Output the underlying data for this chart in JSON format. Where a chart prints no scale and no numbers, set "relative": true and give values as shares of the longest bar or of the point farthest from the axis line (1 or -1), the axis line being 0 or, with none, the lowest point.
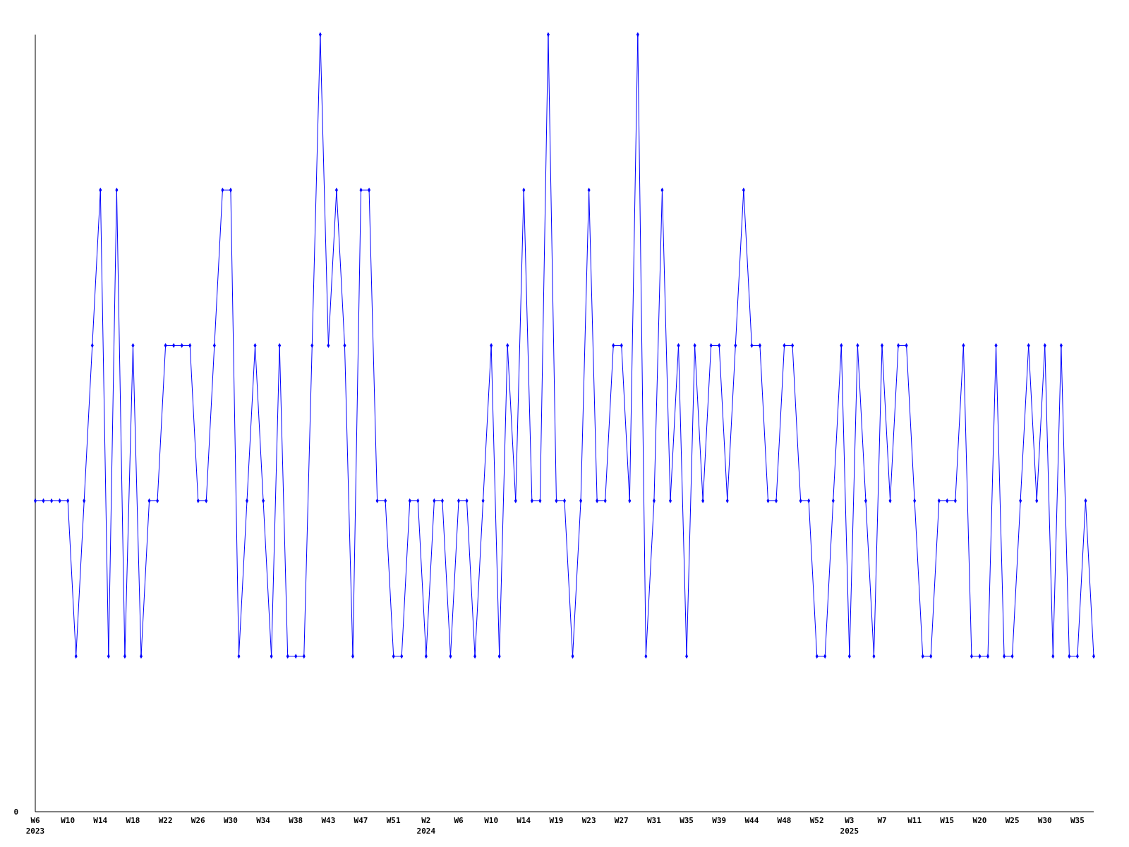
{
  "chart_data": {
    "type": "line",
    "relative": true,
    "color": "#0000ff",
    "marker": "diamond",
    "categories": [
      "W6\n2023",
      null,
      null,
      null,
      "W10",
      null,
      null,
      null,
      "W14",
      null,
      null,
      null,
      "W18",
      null,
      null,
      null,
      "W22",
      null,
      null,
      null,
      "W26",
      null,
      null,
      null,
      "W30",
      null,
      null,
      null,
      "W34",
      null,
      null,
      null,
      "W38",
      null,
      null,
      null,
      "W43",
      null,
      null,
      null,
      "W47",
      null,
      null,
      null,
      "W51",
      null,
      null,
      null,
      "W2\n2024",
      null,
      null,
      null,
      "W6",
      null,
      null,
      null,
      "W10",
      null,
      null,
      null,
      "W14",
      null,
      null,
      null,
      "W19",
      null,
      null,
      null,
      "W23",
      null,
      null,
      null,
      "W27",
      null,
      null,
      null,
      "W31",
      null,
      null,
      null,
      "W35",
      null,
      null,
      null,
      "W39",
      null,
      null,
      null,
      "W44",
      null,
      null,
      null,
      "W48",
      null,
      null,
      null,
      "W52",
      null,
      null,
      null,
      "W3\n2025",
      null,
      null,
      null,
      "W7",
      null,
      null,
      null,
      "W11",
      null,
      null,
      null,
      "W15",
      null,
      null,
      null,
      "W20",
      null,
      null,
      null,
      "W25",
      null,
      null,
      null,
      "W30",
      null,
      null,
      null,
      "W35",
      null,
      null
    ],
    "values": [
      0.4,
      0.4,
      0.4,
      0.4,
      0.4,
      0.2,
      0.4,
      0.6,
      0.8,
      0.2,
      0.8,
      0.2,
      0.6,
      0.2,
      0.4,
      0.4,
      0.6,
      0.6,
      0.6,
      0.6,
      0.4,
      0.4,
      0.6,
      0.8,
      0.8,
      0.2,
      0.4,
      0.6,
      0.4,
      0.2,
      0.6,
      0.2,
      0.2,
      0.2,
      0.6,
      1,
      0.6,
      0.8,
      0.6,
      0.2,
      0.8,
      0.8,
      0.4,
      0.4,
      0.2,
      0.2,
      0.4,
      0.4,
      0.2,
      0.4,
      0.4,
      0.2,
      0.4,
      0.4,
      0.2,
      0.4,
      0.6,
      0.2,
      0.6,
      0.4,
      0.8,
      0.4,
      0.4,
      1,
      0.4,
      0.4,
      0.2,
      0.4,
      0.8,
      0.4,
      0.4,
      0.6,
      0.6,
      0.4,
      1,
      0.2,
      0.4,
      0.8,
      0.4,
      0.6,
      0.2,
      0.6,
      0.4,
      0.6,
      0.6,
      0.4,
      0.6,
      0.8,
      0.6,
      0.6,
      0.4,
      0.4,
      0.6,
      0.6,
      0.4,
      0.4,
      0.2,
      0.2,
      0.4,
      0.6,
      0.2,
      0.6,
      0.4,
      0.2,
      0.6,
      0.4,
      0.6,
      0.6,
      0.4,
      0.2,
      0.2,
      0.4,
      0.4,
      0.4,
      0.6,
      0.2,
      0.2,
      0.2,
      0.6,
      0.2,
      0.2,
      0.4,
      0.6,
      0.4,
      0.6,
      0.2,
      0.6,
      0.2,
      0.2,
      0.4,
      0.2
    ],
    "annotations": [
      "0"
    ]
  }
}
